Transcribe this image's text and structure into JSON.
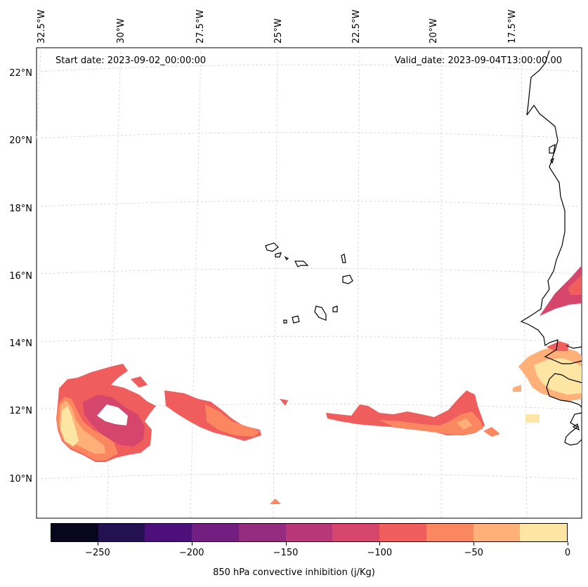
{
  "map": {
    "start_date": "Start date: 2023-09-02_00:00:00",
    "valid_date": "Valid_date: 2023-09-04T13:00:00.00",
    "lon_labels": [
      "32.5°W",
      "30°W",
      "27.5°W",
      "25°W",
      "22.5°W",
      "20°W",
      "17.5°W"
    ],
    "lat_labels": [
      "22°N",
      "20°N",
      "18°N",
      "16°N",
      "14°N",
      "12°N",
      "10°N"
    ],
    "gridlines": true,
    "colormap": "magma"
  },
  "colorbar": {
    "label": "850 hPa convective inhibition (j/Kg)",
    "ticks": [
      "−250",
      "−200",
      "−150",
      "−100",
      "−50",
      "0"
    ],
    "tick_values": [
      -250,
      -200,
      -150,
      -100,
      -50,
      0
    ],
    "range": [
      -275,
      0
    ],
    "step": 25,
    "colors": [
      "#07061c",
      "#231151",
      "#4d107b",
      "#721f81",
      "#952c80",
      "#b73779",
      "#d6456c",
      "#ef5e5c",
      "#fb8761",
      "#feb078",
      "#fde6a4"
    ]
  }
}
